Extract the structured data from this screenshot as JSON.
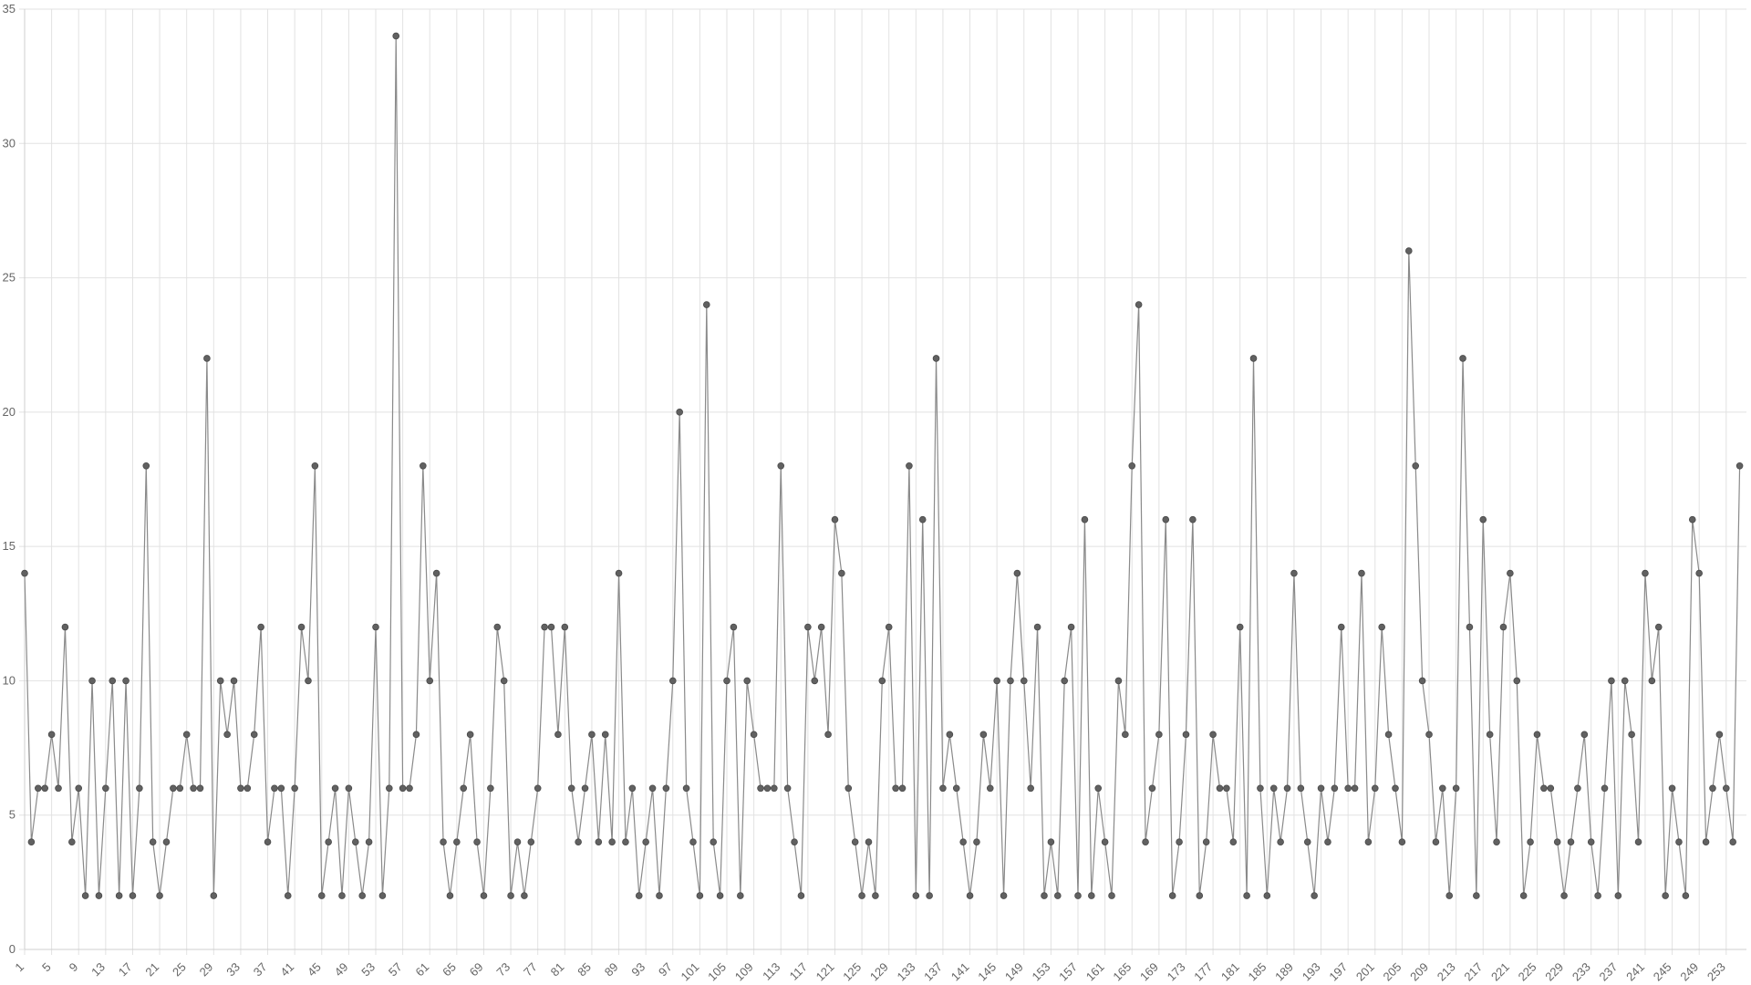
{
  "chart_data": {
    "type": "line",
    "title": "",
    "xlabel": "",
    "ylabel": "",
    "ylim": [
      0,
      35
    ],
    "y_ticks": [
      0,
      5,
      10,
      15,
      20,
      25,
      30,
      35
    ],
    "x_range": [
      1,
      256
    ],
    "x_tick_step": 4,
    "grid": true,
    "legend": "none",
    "colors": {
      "line": "#8a8a8a",
      "point": "#616161",
      "grid": "#e2e2e2",
      "tick_text": "#666666"
    },
    "series": [
      {
        "values": [
          14,
          4,
          6,
          6,
          8,
          6,
          12,
          4,
          6,
          2,
          10,
          2,
          6,
          10,
          2,
          10,
          2,
          6,
          18,
          4,
          2,
          4,
          6,
          6,
          8,
          6,
          6,
          22,
          2,
          10,
          8,
          10,
          6,
          6,
          8,
          12,
          4,
          6,
          6,
          2,
          6,
          12,
          10,
          18,
          2,
          4,
          6,
          2,
          6,
          4,
          2,
          4,
          12,
          2,
          6,
          34,
          6,
          6,
          8,
          18,
          10,
          14,
          4,
          2,
          4,
          6,
          8,
          4,
          2,
          6,
          12,
          10,
          2,
          4,
          2,
          4,
          6,
          12,
          12,
          8,
          12,
          6,
          4,
          6,
          8,
          4,
          8,
          4,
          14,
          4,
          6,
          2,
          4,
          6,
          2,
          6,
          10,
          20,
          6,
          4,
          2,
          24,
          4,
          2,
          10,
          12,
          2,
          10,
          8,
          6,
          6,
          6,
          18,
          6,
          4,
          2,
          12,
          10,
          12,
          8,
          16,
          14,
          6,
          4,
          2,
          4,
          2,
          10,
          12,
          6,
          6,
          18,
          2,
          16,
          2,
          22,
          6,
          8,
          6,
          4,
          2,
          4,
          8,
          6,
          10,
          2,
          10,
          14,
          10,
          6,
          12,
          2,
          4,
          2,
          10,
          12,
          2,
          16,
          2,
          6,
          4,
          2,
          10,
          8,
          18,
          24,
          4,
          6,
          8,
          16,
          2,
          4,
          8,
          16,
          2,
          4,
          8,
          6,
          6,
          4,
          12,
          2,
          22,
          6,
          2,
          6,
          4,
          6,
          14,
          6,
          4,
          2,
          6,
          4,
          6,
          12,
          6,
          6,
          14,
          4,
          6,
          12,
          8,
          6,
          4,
          26,
          18,
          10,
          8,
          4,
          6,
          2,
          6,
          22,
          12,
          2,
          16,
          8,
          4,
          12,
          14,
          10,
          2,
          4,
          8,
          6,
          6,
          4,
          2,
          4,
          6,
          8,
          4,
          2,
          6,
          10,
          2,
          10,
          8,
          4,
          14,
          10,
          12,
          2,
          6,
          4,
          2,
          16,
          14,
          4,
          6,
          8,
          6,
          4,
          18
        ]
      }
    ]
  }
}
